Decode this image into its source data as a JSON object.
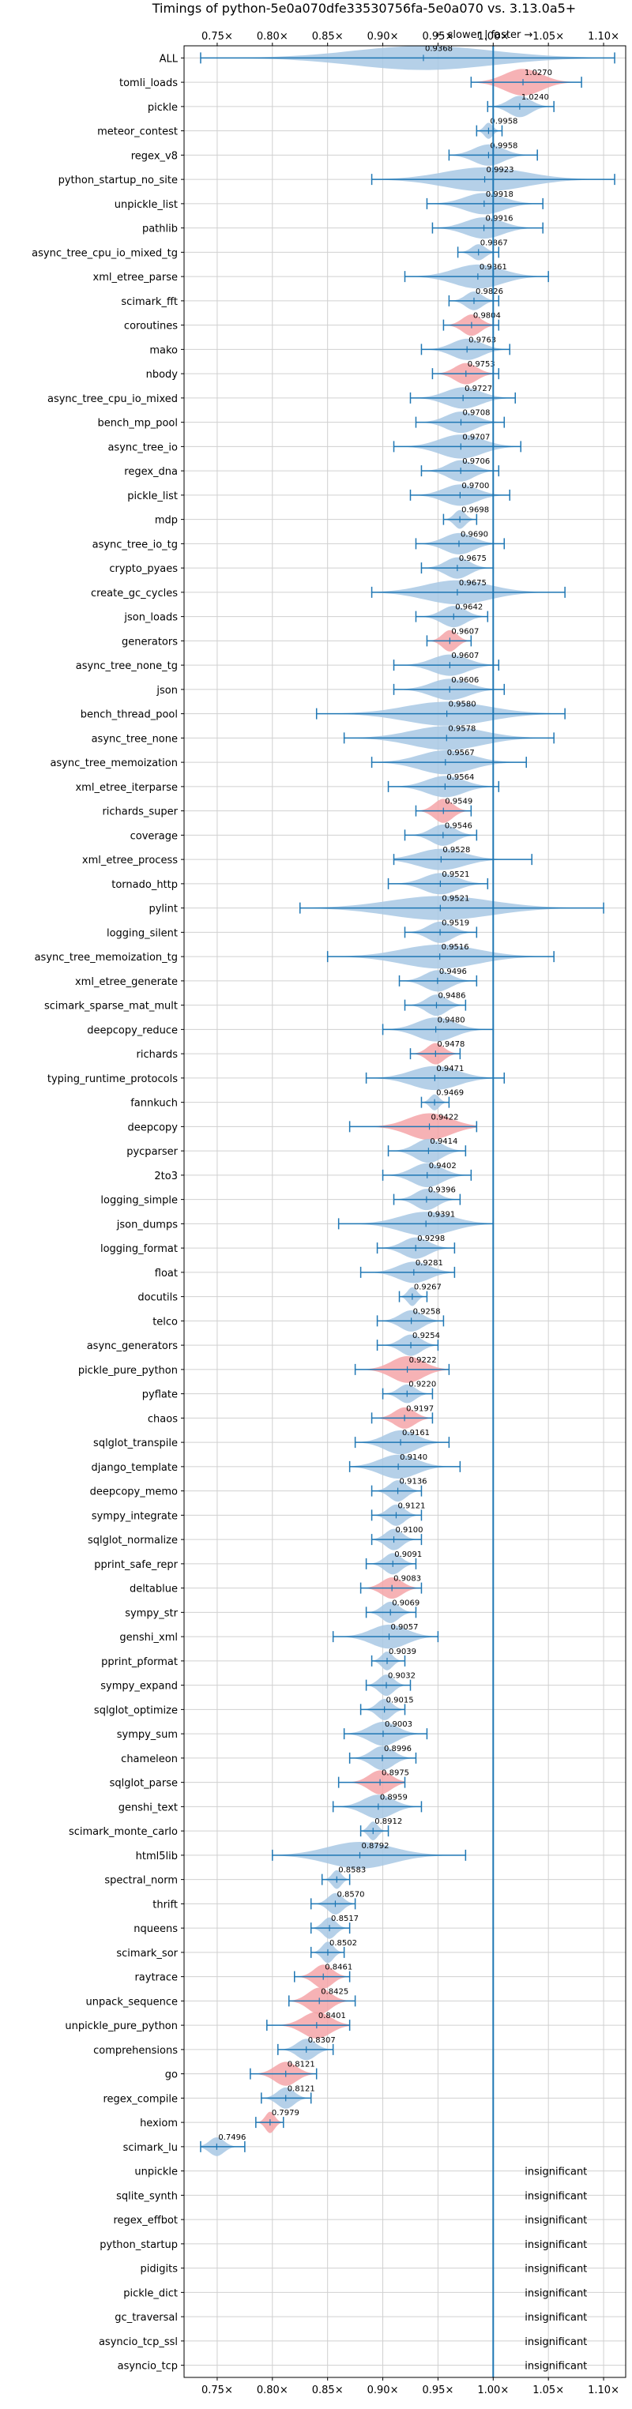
{
  "chart_data": {
    "type": "violin",
    "title": "Timings of python-5e0a070dfe33530756fa-5e0a070 vs. 3.13.0a5+",
    "direction_label": "← slower | faster →",
    "xlim": [
      0.72,
      1.12
    ],
    "x_ticks": [
      0.75,
      0.8,
      0.85,
      0.9,
      0.95,
      1.0,
      1.05,
      1.1
    ],
    "x_tick_labels": [
      "0.75×",
      "0.80×",
      "0.85×",
      "0.90×",
      "0.95×",
      "1.00×",
      "1.05×",
      "1.10×"
    ],
    "reference_line": 1.0,
    "grid": true,
    "colors": {
      "faster": "#a8c8e4",
      "slower": "#f4a5a8",
      "line": "#1f77b4"
    },
    "insignificant_label": "insignificant",
    "benchmarks": [
      {
        "name": "ALL",
        "value": 0.9368,
        "lo": 0.735,
        "hi": 1.11,
        "width": 0.9,
        "color": "faster"
      },
      {
        "name": "tomli_loads",
        "value": 1.027,
        "lo": 0.98,
        "hi": 1.08,
        "width": 1.0,
        "color": "slower"
      },
      {
        "name": "pickle",
        "value": 1.024,
        "lo": 0.995,
        "hi": 1.055,
        "width": 0.8,
        "color": "faster"
      },
      {
        "name": "meteor_contest",
        "value": 0.9958,
        "lo": 0.985,
        "hi": 1.008,
        "width": 0.6,
        "color": "faster"
      },
      {
        "name": "regex_v8",
        "value": 0.9958,
        "lo": 0.96,
        "hi": 1.04,
        "width": 0.8,
        "color": "faster"
      },
      {
        "name": "python_startup_no_site",
        "value": 0.9923,
        "lo": 0.89,
        "hi": 1.11,
        "width": 0.9,
        "color": "faster"
      },
      {
        "name": "unpickle_list",
        "value": 0.9918,
        "lo": 0.94,
        "hi": 1.045,
        "width": 0.8,
        "color": "faster"
      },
      {
        "name": "pathlib",
        "value": 0.9916,
        "lo": 0.945,
        "hi": 1.045,
        "width": 0.8,
        "color": "faster"
      },
      {
        "name": "async_tree_cpu_io_mixed_tg",
        "value": 0.9867,
        "lo": 0.968,
        "hi": 1.005,
        "width": 0.6,
        "color": "faster"
      },
      {
        "name": "xml_etree_parse",
        "value": 0.9861,
        "lo": 0.92,
        "hi": 1.05,
        "width": 0.9,
        "color": "faster"
      },
      {
        "name": "scimark_fft",
        "value": 0.9826,
        "lo": 0.96,
        "hi": 1.005,
        "width": 0.7,
        "color": "faster"
      },
      {
        "name": "coroutines",
        "value": 0.9804,
        "lo": 0.955,
        "hi": 1.005,
        "width": 0.8,
        "color": "slower"
      },
      {
        "name": "mako",
        "value": 0.9763,
        "lo": 0.935,
        "hi": 1.015,
        "width": 0.8,
        "color": "faster"
      },
      {
        "name": "nbody",
        "value": 0.9753,
        "lo": 0.945,
        "hi": 1.005,
        "width": 0.8,
        "color": "slower"
      },
      {
        "name": "async_tree_cpu_io_mixed",
        "value": 0.9727,
        "lo": 0.925,
        "hi": 1.02,
        "width": 0.8,
        "color": "faster"
      },
      {
        "name": "bench_mp_pool",
        "value": 0.9708,
        "lo": 0.93,
        "hi": 1.01,
        "width": 0.8,
        "color": "faster"
      },
      {
        "name": "async_tree_io",
        "value": 0.9707,
        "lo": 0.91,
        "hi": 1.025,
        "width": 0.9,
        "color": "faster"
      },
      {
        "name": "regex_dna",
        "value": 0.9706,
        "lo": 0.935,
        "hi": 1.005,
        "width": 0.8,
        "color": "faster"
      },
      {
        "name": "pickle_list",
        "value": 0.97,
        "lo": 0.925,
        "hi": 1.015,
        "width": 0.8,
        "color": "faster"
      },
      {
        "name": "mdp",
        "value": 0.9698,
        "lo": 0.955,
        "hi": 0.985,
        "width": 0.7,
        "color": "faster"
      },
      {
        "name": "async_tree_io_tg",
        "value": 0.969,
        "lo": 0.93,
        "hi": 1.01,
        "width": 0.8,
        "color": "faster"
      },
      {
        "name": "crypto_pyaes",
        "value": 0.9675,
        "lo": 0.935,
        "hi": 1.0,
        "width": 0.8,
        "color": "faster"
      },
      {
        "name": "create_gc_cycles",
        "value": 0.9675,
        "lo": 0.89,
        "hi": 1.065,
        "width": 0.9,
        "color": "faster"
      },
      {
        "name": "json_loads",
        "value": 0.9642,
        "lo": 0.93,
        "hi": 0.995,
        "width": 0.8,
        "color": "faster"
      },
      {
        "name": "generators",
        "value": 0.9607,
        "lo": 0.94,
        "hi": 0.98,
        "width": 0.8,
        "color": "slower"
      },
      {
        "name": "async_tree_none_tg",
        "value": 0.9607,
        "lo": 0.91,
        "hi": 1.005,
        "width": 0.8,
        "color": "faster"
      },
      {
        "name": "json",
        "value": 0.9606,
        "lo": 0.91,
        "hi": 1.01,
        "width": 0.8,
        "color": "faster"
      },
      {
        "name": "bench_thread_pool",
        "value": 0.958,
        "lo": 0.84,
        "hi": 1.065,
        "width": 0.9,
        "color": "faster"
      },
      {
        "name": "async_tree_none",
        "value": 0.9578,
        "lo": 0.865,
        "hi": 1.055,
        "width": 0.9,
        "color": "faster"
      },
      {
        "name": "async_tree_memoization",
        "value": 0.9567,
        "lo": 0.89,
        "hi": 1.03,
        "width": 0.9,
        "color": "faster"
      },
      {
        "name": "xml_etree_iterparse",
        "value": 0.9564,
        "lo": 0.905,
        "hi": 1.005,
        "width": 0.8,
        "color": "faster"
      },
      {
        "name": "richards_super",
        "value": 0.9549,
        "lo": 0.93,
        "hi": 0.98,
        "width": 0.9,
        "color": "slower"
      },
      {
        "name": "coverage",
        "value": 0.9546,
        "lo": 0.92,
        "hi": 0.985,
        "width": 0.8,
        "color": "faster"
      },
      {
        "name": "xml_etree_process",
        "value": 0.9528,
        "lo": 0.91,
        "hi": 1.035,
        "width": 0.8,
        "color": "faster"
      },
      {
        "name": "tornado_http",
        "value": 0.9521,
        "lo": 0.905,
        "hi": 0.995,
        "width": 0.8,
        "color": "faster"
      },
      {
        "name": "pylint",
        "value": 0.9521,
        "lo": 0.825,
        "hi": 1.1,
        "width": 0.9,
        "color": "faster"
      },
      {
        "name": "logging_silent",
        "value": 0.9519,
        "lo": 0.92,
        "hi": 0.985,
        "width": 0.8,
        "color": "faster"
      },
      {
        "name": "async_tree_memoization_tg",
        "value": 0.9516,
        "lo": 0.85,
        "hi": 1.055,
        "width": 0.9,
        "color": "faster"
      },
      {
        "name": "xml_etree_generate",
        "value": 0.9496,
        "lo": 0.915,
        "hi": 0.985,
        "width": 0.8,
        "color": "faster"
      },
      {
        "name": "scimark_sparse_mat_mult",
        "value": 0.9486,
        "lo": 0.92,
        "hi": 0.975,
        "width": 0.8,
        "color": "faster"
      },
      {
        "name": "deepcopy_reduce",
        "value": 0.948,
        "lo": 0.9,
        "hi": 1.0,
        "width": 0.9,
        "color": "faster"
      },
      {
        "name": "richards",
        "value": 0.9478,
        "lo": 0.925,
        "hi": 0.97,
        "width": 0.8,
        "color": "slower"
      },
      {
        "name": "typing_runtime_protocols",
        "value": 0.9471,
        "lo": 0.885,
        "hi": 1.01,
        "width": 0.9,
        "color": "faster"
      },
      {
        "name": "fannkuch",
        "value": 0.9469,
        "lo": 0.935,
        "hi": 0.96,
        "width": 0.6,
        "color": "faster"
      },
      {
        "name": "deepcopy",
        "value": 0.9422,
        "lo": 0.87,
        "hi": 0.985,
        "width": 1.0,
        "color": "slower"
      },
      {
        "name": "pycparser",
        "value": 0.9414,
        "lo": 0.905,
        "hi": 0.975,
        "width": 0.9,
        "color": "faster"
      },
      {
        "name": "2to3",
        "value": 0.9402,
        "lo": 0.9,
        "hi": 0.98,
        "width": 0.9,
        "color": "faster"
      },
      {
        "name": "logging_simple",
        "value": 0.9396,
        "lo": 0.91,
        "hi": 0.97,
        "width": 0.8,
        "color": "faster"
      },
      {
        "name": "json_dumps",
        "value": 0.9391,
        "lo": 0.86,
        "hi": 1.0,
        "width": 0.9,
        "color": "faster"
      },
      {
        "name": "logging_format",
        "value": 0.9298,
        "lo": 0.895,
        "hi": 0.965,
        "width": 0.8,
        "color": "faster"
      },
      {
        "name": "float",
        "value": 0.9281,
        "lo": 0.88,
        "hi": 0.965,
        "width": 0.8,
        "color": "faster"
      },
      {
        "name": "docutils",
        "value": 0.9267,
        "lo": 0.915,
        "hi": 0.94,
        "width": 0.7,
        "color": "faster"
      },
      {
        "name": "telco",
        "value": 0.9258,
        "lo": 0.895,
        "hi": 0.955,
        "width": 0.8,
        "color": "faster"
      },
      {
        "name": "async_generators",
        "value": 0.9254,
        "lo": 0.895,
        "hi": 0.95,
        "width": 0.8,
        "color": "faster"
      },
      {
        "name": "pickle_pure_python",
        "value": 0.9222,
        "lo": 0.875,
        "hi": 0.96,
        "width": 1.0,
        "color": "slower"
      },
      {
        "name": "pyflate",
        "value": 0.922,
        "lo": 0.9,
        "hi": 0.945,
        "width": 0.7,
        "color": "faster"
      },
      {
        "name": "chaos",
        "value": 0.9197,
        "lo": 0.89,
        "hi": 0.945,
        "width": 0.8,
        "color": "slower"
      },
      {
        "name": "sqlglot_transpile",
        "value": 0.9161,
        "lo": 0.875,
        "hi": 0.96,
        "width": 0.9,
        "color": "faster"
      },
      {
        "name": "django_template",
        "value": 0.914,
        "lo": 0.87,
        "hi": 0.97,
        "width": 0.9,
        "color": "faster"
      },
      {
        "name": "deepcopy_memo",
        "value": 0.9136,
        "lo": 0.89,
        "hi": 0.935,
        "width": 0.8,
        "color": "faster"
      },
      {
        "name": "sympy_integrate",
        "value": 0.9121,
        "lo": 0.89,
        "hi": 0.935,
        "width": 0.8,
        "color": "faster"
      },
      {
        "name": "sqlglot_normalize",
        "value": 0.91,
        "lo": 0.89,
        "hi": 0.935,
        "width": 0.8,
        "color": "faster"
      },
      {
        "name": "pprint_safe_repr",
        "value": 0.9091,
        "lo": 0.885,
        "hi": 0.93,
        "width": 0.8,
        "color": "faster"
      },
      {
        "name": "deltablue",
        "value": 0.9083,
        "lo": 0.88,
        "hi": 0.935,
        "width": 0.8,
        "color": "slower"
      },
      {
        "name": "sympy_str",
        "value": 0.9069,
        "lo": 0.885,
        "hi": 0.93,
        "width": 0.8,
        "color": "faster"
      },
      {
        "name": "genshi_xml",
        "value": 0.9057,
        "lo": 0.855,
        "hi": 0.95,
        "width": 0.9,
        "color": "faster"
      },
      {
        "name": "pprint_pformat",
        "value": 0.9039,
        "lo": 0.89,
        "hi": 0.92,
        "width": 0.7,
        "color": "faster"
      },
      {
        "name": "sympy_expand",
        "value": 0.9032,
        "lo": 0.885,
        "hi": 0.925,
        "width": 0.8,
        "color": "faster"
      },
      {
        "name": "sqlglot_optimize",
        "value": 0.9015,
        "lo": 0.88,
        "hi": 0.92,
        "width": 0.8,
        "color": "faster"
      },
      {
        "name": "sympy_sum",
        "value": 0.9003,
        "lo": 0.865,
        "hi": 0.94,
        "width": 0.9,
        "color": "faster"
      },
      {
        "name": "chameleon",
        "value": 0.8996,
        "lo": 0.87,
        "hi": 0.93,
        "width": 0.9,
        "color": "faster"
      },
      {
        "name": "sqlglot_parse",
        "value": 0.8975,
        "lo": 0.86,
        "hi": 0.92,
        "width": 0.9,
        "color": "slower"
      },
      {
        "name": "genshi_text",
        "value": 0.8959,
        "lo": 0.855,
        "hi": 0.935,
        "width": 0.9,
        "color": "faster"
      },
      {
        "name": "scimark_monte_carlo",
        "value": 0.8912,
        "lo": 0.88,
        "hi": 0.905,
        "width": 0.7,
        "color": "faster"
      },
      {
        "name": "html5lib",
        "value": 0.8792,
        "lo": 0.8,
        "hi": 0.975,
        "width": 1.0,
        "color": "faster"
      },
      {
        "name": "spectral_norm",
        "value": 0.8583,
        "lo": 0.845,
        "hi": 0.87,
        "width": 0.7,
        "color": "faster"
      },
      {
        "name": "thrift",
        "value": 0.857,
        "lo": 0.835,
        "hi": 0.875,
        "width": 0.8,
        "color": "faster"
      },
      {
        "name": "nqueens",
        "value": 0.8517,
        "lo": 0.835,
        "hi": 0.87,
        "width": 0.8,
        "color": "faster"
      },
      {
        "name": "scimark_sor",
        "value": 0.8502,
        "lo": 0.835,
        "hi": 0.865,
        "width": 0.8,
        "color": "faster"
      },
      {
        "name": "raytrace",
        "value": 0.8461,
        "lo": 0.82,
        "hi": 0.87,
        "width": 0.9,
        "color": "slower"
      },
      {
        "name": "unpack_sequence",
        "value": 0.8425,
        "lo": 0.815,
        "hi": 0.875,
        "width": 1.0,
        "color": "slower"
      },
      {
        "name": "unpickle_pure_python",
        "value": 0.8401,
        "lo": 0.795,
        "hi": 0.87,
        "width": 1.0,
        "color": "slower"
      },
      {
        "name": "comprehensions",
        "value": 0.8307,
        "lo": 0.805,
        "hi": 0.855,
        "width": 0.8,
        "color": "faster"
      },
      {
        "name": "go",
        "value": 0.8121,
        "lo": 0.78,
        "hi": 0.84,
        "width": 0.9,
        "color": "slower"
      },
      {
        "name": "regex_compile",
        "value": 0.8121,
        "lo": 0.79,
        "hi": 0.835,
        "width": 0.8,
        "color": "faster"
      },
      {
        "name": "hexiom",
        "value": 0.7979,
        "lo": 0.785,
        "hi": 0.81,
        "width": 0.8,
        "color": "slower"
      },
      {
        "name": "scimark_lu",
        "value": 0.7496,
        "lo": 0.735,
        "hi": 0.775,
        "width": 0.7,
        "color": "faster"
      },
      {
        "name": "unpickle",
        "value": null
      },
      {
        "name": "sqlite_synth",
        "value": null
      },
      {
        "name": "regex_effbot",
        "value": null
      },
      {
        "name": "python_startup",
        "value": null
      },
      {
        "name": "pidigits",
        "value": null
      },
      {
        "name": "pickle_dict",
        "value": null
      },
      {
        "name": "gc_traversal",
        "value": null
      },
      {
        "name": "asyncio_tcp_ssl",
        "value": null
      },
      {
        "name": "asyncio_tcp",
        "value": null
      }
    ]
  }
}
